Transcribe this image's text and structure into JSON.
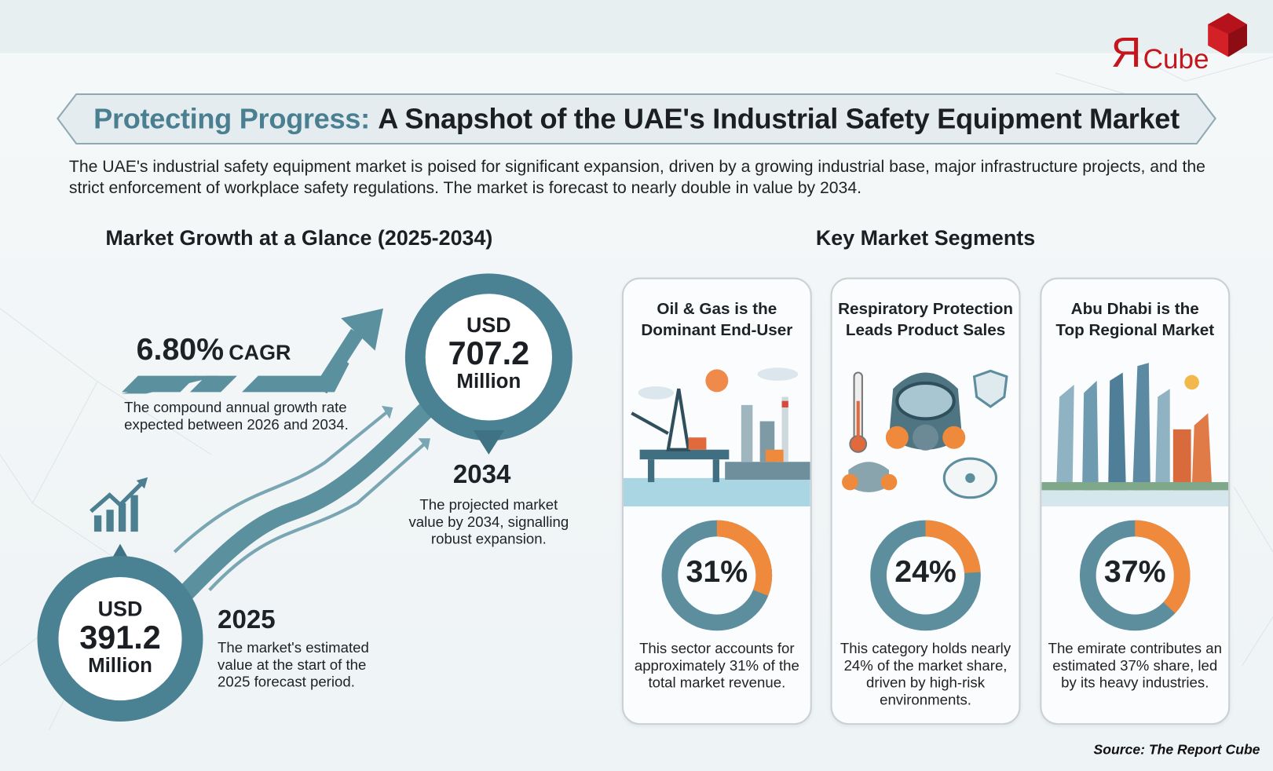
{
  "logo": {
    "text": "ЯCube",
    "brand_color": "#c4161c"
  },
  "title": {
    "accent": "Protecting Progress:",
    "main": "A Snapshot of the UAE's Industrial Safety Equipment Market"
  },
  "intro": "The UAE's industrial safety equipment market is poised for significant expansion, driven by a growing industrial base, major infrastructure projects, and the strict enforcement of workplace safety regulations. The market is forecast to nearly double in value by 2034.",
  "growth": {
    "heading": "Market Growth at a Glance (2025-2034)",
    "cagr": {
      "value": "6.80%",
      "label": "CAGR",
      "desc_1": "The compound annual growth rate",
      "desc_2": "expected between 2026 and 2034."
    },
    "end": {
      "currency": "USD",
      "value": "707.2",
      "unit": "Million",
      "year": "2034",
      "desc_1": "The projected market",
      "desc_2": "value by 2034, signalling",
      "desc_3": "robust expansion."
    },
    "start": {
      "currency": "USD",
      "value": "391.2",
      "unit": "Million",
      "year": "2025",
      "desc_1": "The market's estimated",
      "desc_2": "value at the start of the",
      "desc_3": "2025 forecast period."
    },
    "icon": "growth-chart-icon"
  },
  "segments": {
    "heading": "Key Market Segments",
    "cards": [
      {
        "title_1": "Oil & Gas is the",
        "title_2": "Dominant End-User",
        "percent": 31,
        "percent_label": "31%",
        "desc_1": "This sector accounts for",
        "desc_2": "approximately 31% of the",
        "desc_3": "total market revenue.",
        "desc_4": "",
        "illustration": "oil-rig-refinery"
      },
      {
        "title_1": "Respiratory Protection",
        "title_2": "Leads Product Sales",
        "percent": 24,
        "percent_label": "24%",
        "desc_1": "This category holds nearly",
        "desc_2": "24% of the market share,",
        "desc_3": "driven by high-risk",
        "desc_4": "environments.",
        "illustration": "respirator-masks"
      },
      {
        "title_1": "Abu Dhabi is the",
        "title_2": "Top Regional Market",
        "percent": 37,
        "percent_label": "37%",
        "desc_1": "The emirate contributes an",
        "desc_2": "estimated 37% share, led",
        "desc_3": "by its heavy industries.",
        "desc_4": "",
        "illustration": "abu-dhabi-skyline"
      }
    ]
  },
  "colors": {
    "teal": "#4a8294",
    "orange": "#ef8a3c",
    "donut_base": "#5d8e9e"
  },
  "source": "Source: The Report Cube"
}
